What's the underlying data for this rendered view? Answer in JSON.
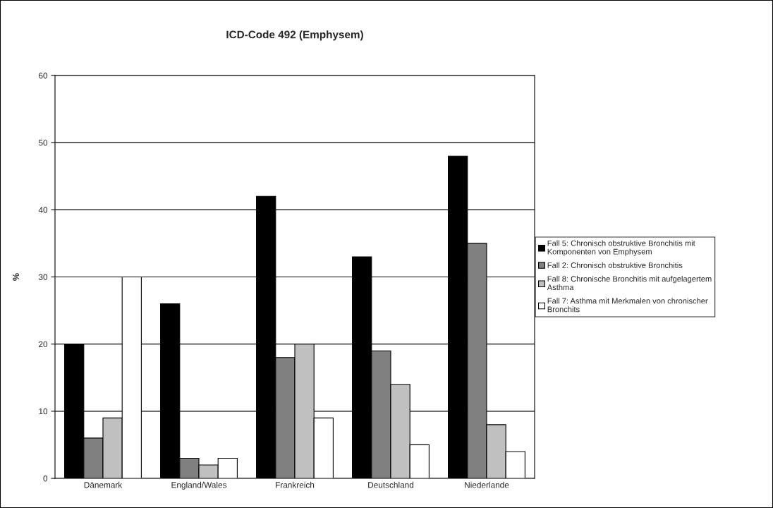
{
  "chart_data": {
    "type": "bar",
    "title": "ICD-Code 492 (Emphysem)",
    "ylabel": "%",
    "categories": [
      "Dänemark",
      "England/Wales",
      "Frankreich",
      "Deutschland",
      "Niederlande"
    ],
    "series": [
      {
        "name": "Fall 5: Chronisch obstruktive Bronchitis mit\nKomponenten von Emphysem",
        "color": "#000000",
        "values": [
          20,
          26,
          42,
          33,
          48
        ]
      },
      {
        "name": "Fall 2: Chronisch obstruktive Bronchitis",
        "color": "#808080",
        "values": [
          6,
          3,
          18,
          19,
          35
        ]
      },
      {
        "name": "Fall 8: Chronische Bronchitis mit aufgelagertem\nAsthma",
        "color": "#c0c0c0",
        "values": [
          9,
          2,
          20,
          14,
          8
        ]
      },
      {
        "name": "Fall 7: Asthma mit Merkmalen von chronischer\nBronchits",
        "color": "#ffffff",
        "values": [
          30,
          3,
          9,
          5,
          4
        ]
      }
    ],
    "ylim": [
      0,
      60
    ],
    "yticks": [
      0,
      10,
      20,
      30,
      40,
      50,
      60
    ],
    "grid": "y",
    "legend": "right"
  }
}
